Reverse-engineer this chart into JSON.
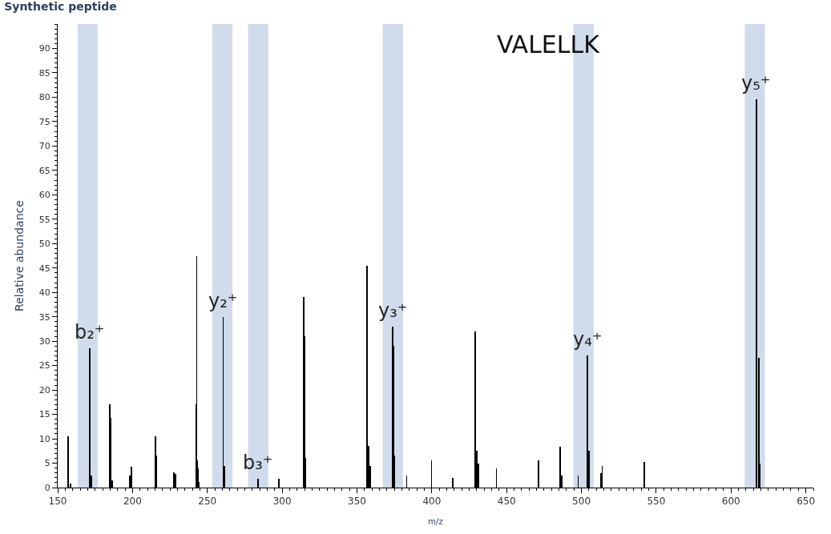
{
  "chart_data": {
    "type": "bar",
    "title": "Synthetic peptide",
    "xlabel": "m/z",
    "ylabel": "Relative abundance",
    "x": [
      157.0,
      158.5,
      171.6,
      172.6,
      184.6,
      185.6,
      186.6,
      198.2,
      199.2,
      215.3,
      215.8,
      227.8,
      228.8,
      242.4,
      242.9,
      243.4,
      243.9,
      244.4,
      260.6,
      261.6,
      284.0,
      298.0,
      314.6,
      315.1,
      315.6,
      356.8,
      357.8,
      358.8,
      374.0,
      374.5,
      375.0,
      383.2,
      399.8,
      414.0,
      429.1,
      430.1,
      431.1,
      443.2,
      471.3,
      485.9,
      486.9,
      497.8,
      504.0,
      505.0,
      512.9,
      513.9,
      542.0,
      616.9,
      618.4,
      618.9
    ],
    "values": [
      10.5,
      0.8,
      28.5,
      2.5,
      17,
      14.3,
      1.5,
      2.5,
      4.2,
      10.5,
      6.5,
      3.2,
      2.8,
      17,
      47.5,
      5.5,
      4,
      1.2,
      35,
      4.5,
      1.8,
      1.8,
      39,
      31,
      6,
      45.5,
      8.5,
      4.5,
      33,
      29,
      6.5,
      2.5,
      5.5,
      2,
      32,
      7.5,
      5,
      4,
      5.5,
      8.3,
      2.5,
      2.5,
      27,
      7.5,
      3,
      4.5,
      5.2,
      79.5,
      26.5,
      5
    ],
    "color": "#000000",
    "xlim": [
      150,
      655
    ],
    "xticks": [
      150,
      200,
      250,
      300,
      350,
      400,
      450,
      500,
      550,
      600,
      650
    ],
    "ylim": [
      0,
      95
    ],
    "yticks": [
      0,
      5,
      10,
      15,
      20,
      25,
      30,
      35,
      40,
      45,
      50,
      55,
      60,
      65,
      70,
      75,
      80,
      85,
      90
    ],
    "grid": false,
    "bands": [
      {
        "axis": "x",
        "from": 163.3,
        "to": 176.8,
        "color": "#d0dcec"
      },
      {
        "axis": "x",
        "from": 253.3,
        "to": 266.8,
        "color": "#d0dcec"
      },
      {
        "axis": "x",
        "from": 277.2,
        "to": 290.8,
        "color": "#d0dcec"
      },
      {
        "axis": "x",
        "from": 367.2,
        "to": 380.7,
        "color": "#d0dcec"
      },
      {
        "axis": "x",
        "from": 494.7,
        "to": 508.2,
        "color": "#d0dcec"
      },
      {
        "axis": "x",
        "from": 609.1,
        "to": 622.6,
        "color": "#d0dcec"
      }
    ],
    "annotations": [
      {
        "text": "b₂⁺",
        "x": 171.6,
        "y": 28.5
      },
      {
        "text": "y₂⁺",
        "x": 260.6,
        "y": 35
      },
      {
        "text": "b₃⁺",
        "x": 284.0,
        "y": 1.8
      },
      {
        "text": "y₃⁺",
        "x": 374.0,
        "y": 33
      },
      {
        "text": "y₄⁺",
        "x": 504.0,
        "y": 27
      },
      {
        "text": "y₅⁺",
        "x": 616.9,
        "y": 79.5
      },
      "VALELLK"
    ]
  }
}
